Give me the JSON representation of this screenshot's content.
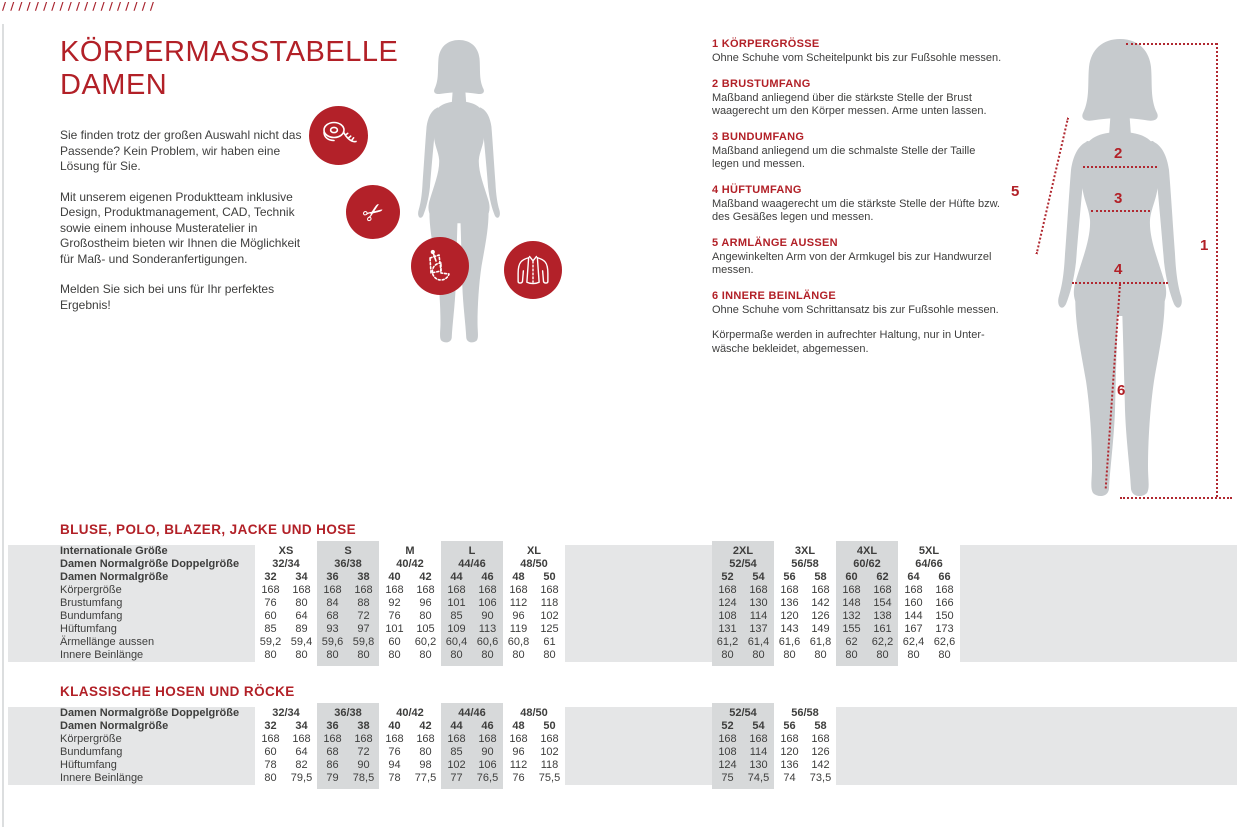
{
  "decor": {
    "slashes": "///////////////////"
  },
  "colors": {
    "accent_red": "#b22027",
    "badge_red": "#b32129",
    "silhouette_gray": "#c6cacd",
    "band_gray": "#e5e6e7",
    "shaded_column_gray": "#d7d9da",
    "body_text": "#3e3e3d"
  },
  "page": {
    "title_line1": "KÖRPERMASSTABELLE",
    "title_line2": "DAMEN",
    "intro": [
      "Sie finden trotz der großen Auswahl nicht das Passende? Kein Problem, wir haben eine Lösung für Sie.",
      "Mit unserem eigenen Produktteam inklusive Design, Produktmanagement, CAD, Technik sowie einem inhouse Musteratelier in Großostheim bieten wir Ihnen die Möglichkeit für Maß- und Sonderanfertigungen.",
      "Melden Sie sich bei uns für Ihr perfektes Ergebnis!"
    ]
  },
  "icons": [
    "tape-measure-icon",
    "scissors-icon",
    "sewing-pattern-icon",
    "jacket-icon"
  ],
  "scissors_glyph": "✂",
  "instructions": [
    {
      "heading": "1 KÖRPERGRÖSSE",
      "text": "Ohne Schuhe vom Scheitelpunkt bis zur Fußsohle messen."
    },
    {
      "heading": "2 BRUSTUMFANG",
      "text": "Maßband anliegend über die stärkste Stelle der Brust waagerecht um den Körper messen. Arme unten lassen."
    },
    {
      "heading": "3 BUNDUMFANG",
      "text": "Maßband anliegend um die schmalste Stelle der Taille legen und messen."
    },
    {
      "heading": "4 HÜFTUMFANG",
      "text": "Maßband waagerecht um die stärkste Stelle der Hüfte bzw. des Gesäßes legen und messen."
    },
    {
      "heading": "5 ARMLÄNGE AUSSEN",
      "text": "Angewinkelten Arm von der Armkugel bis zur Handwurzel messen."
    },
    {
      "heading": "6 INNERE BEINLÄNGE",
      "text": "Ohne Schuhe vom Schrittansatz bis zur Fußsohle messen."
    }
  ],
  "note": "Körpermaße werden in aufrechter Haltung, nur in Unter­wäsche bekleidet, abgemessen.",
  "measure_labels": [
    "1",
    "2",
    "3",
    "4",
    "5",
    "6"
  ],
  "tables": [
    {
      "title": "BLUSE, POLO, BLAZER, JACKE UND HOSE",
      "header_labels": [
        "Internationale Größe",
        "Damen Normalgröße Doppelgröße",
        "Damen Normalgröße"
      ],
      "metric_labels": [
        "Körpergröße",
        "Brustumfang",
        "Bundumfang",
        "Hüftumfang",
        "Ärmellänge aussen",
        "Innere Beinlänge"
      ],
      "groups": [
        {
          "int_size": "XS",
          "double_size": "32/34",
          "shaded": false,
          "columns": [
            {
              "size": "32",
              "values": [
                "168",
                "76",
                "60",
                "85",
                "59,2",
                "80"
              ]
            },
            {
              "size": "34",
              "values": [
                "168",
                "80",
                "64",
                "89",
                "59,4",
                "80"
              ]
            }
          ]
        },
        {
          "int_size": "S",
          "double_size": "36/38",
          "shaded": true,
          "columns": [
            {
              "size": "36",
              "values": [
                "168",
                "84",
                "68",
                "93",
                "59,6",
                "80"
              ]
            },
            {
              "size": "38",
              "values": [
                "168",
                "88",
                "72",
                "97",
                "59,8",
                "80"
              ]
            }
          ]
        },
        {
          "int_size": "M",
          "double_size": "40/42",
          "shaded": false,
          "columns": [
            {
              "size": "40",
              "values": [
                "168",
                "92",
                "76",
                "101",
                "60",
                "80"
              ]
            },
            {
              "size": "42",
              "values": [
                "168",
                "96",
                "80",
                "105",
                "60,2",
                "80"
              ]
            }
          ]
        },
        {
          "int_size": "L",
          "double_size": "44/46",
          "shaded": true,
          "columns": [
            {
              "size": "44",
              "values": [
                "168",
                "101",
                "85",
                "109",
                "60,4",
                "80"
              ]
            },
            {
              "size": "46",
              "values": [
                "168",
                "106",
                "90",
                "113",
                "60,6",
                "80"
              ]
            }
          ]
        },
        {
          "int_size": "XL",
          "double_size": "48/50",
          "shaded": false,
          "columns": [
            {
              "size": "48",
              "values": [
                "168",
                "112",
                "96",
                "119",
                "60,8",
                "80"
              ]
            },
            {
              "size": "50",
              "values": [
                "168",
                "118",
                "102",
                "125",
                "61",
                "80"
              ]
            }
          ]
        },
        {
          "int_size": "2XL",
          "double_size": "52/54",
          "shaded": true,
          "columns": [
            {
              "size": "52",
              "values": [
                "168",
                "124",
                "108",
                "131",
                "61,2",
                "80"
              ]
            },
            {
              "size": "54",
              "values": [
                "168",
                "130",
                "114",
                "137",
                "61,4",
                "80"
              ]
            }
          ]
        },
        {
          "int_size": "3XL",
          "double_size": "56/58",
          "shaded": false,
          "columns": [
            {
              "size": "56",
              "values": [
                "168",
                "136",
                "120",
                "143",
                "61,6",
                "80"
              ]
            },
            {
              "size": "58",
              "values": [
                "168",
                "142",
                "126",
                "149",
                "61,8",
                "80"
              ]
            }
          ]
        },
        {
          "int_size": "4XL",
          "double_size": "60/62",
          "shaded": true,
          "columns": [
            {
              "size": "60",
              "values": [
                "168",
                "148",
                "132",
                "155",
                "62",
                "80"
              ]
            },
            {
              "size": "62",
              "values": [
                "168",
                "154",
                "138",
                "161",
                "62,2",
                "80"
              ]
            }
          ]
        },
        {
          "int_size": "5XL",
          "double_size": "64/66",
          "shaded": false,
          "columns": [
            {
              "size": "64",
              "values": [
                "168",
                "160",
                "144",
                "167",
                "62,4",
                "80"
              ]
            },
            {
              "size": "66",
              "values": [
                "168",
                "166",
                "150",
                "173",
                "62,6",
                "80"
              ]
            }
          ]
        }
      ]
    },
    {
      "title": "KLASSISCHE HOSEN UND RÖCKE",
      "header_labels": [
        "Damen Normalgröße Doppelgröße",
        "Damen Normalgröße"
      ],
      "metric_labels": [
        "Körpergröße",
        "Bundumfang",
        "Hüftumfang",
        "Innere Beinlänge"
      ],
      "groups": [
        {
          "double_size": "32/34",
          "shaded": false,
          "columns": [
            {
              "size": "32",
              "values": [
                "168",
                "60",
                "78",
                "80"
              ]
            },
            {
              "size": "34",
              "values": [
                "168",
                "64",
                "82",
                "79,5"
              ]
            }
          ]
        },
        {
          "double_size": "36/38",
          "shaded": true,
          "columns": [
            {
              "size": "36",
              "values": [
                "168",
                "68",
                "86",
                "79"
              ]
            },
            {
              "size": "38",
              "values": [
                "168",
                "72",
                "90",
                "78,5"
              ]
            }
          ]
        },
        {
          "double_size": "40/42",
          "shaded": false,
          "columns": [
            {
              "size": "40",
              "values": [
                "168",
                "76",
                "94",
                "78"
              ]
            },
            {
              "size": "42",
              "values": [
                "168",
                "80",
                "98",
                "77,5"
              ]
            }
          ]
        },
        {
          "double_size": "44/46",
          "shaded": true,
          "columns": [
            {
              "size": "44",
              "values": [
                "168",
                "85",
                "102",
                "77"
              ]
            },
            {
              "size": "46",
              "values": [
                "168",
                "90",
                "106",
                "76,5"
              ]
            }
          ]
        },
        {
          "double_size": "48/50",
          "shaded": false,
          "columns": [
            {
              "size": "48",
              "values": [
                "168",
                "96",
                "112",
                "76"
              ]
            },
            {
              "size": "50",
              "values": [
                "168",
                "102",
                "118",
                "75,5"
              ]
            }
          ]
        },
        {
          "double_size": "52/54",
          "shaded": true,
          "columns": [
            {
              "size": "52",
              "values": [
                "168",
                "108",
                "124",
                "75"
              ]
            },
            {
              "size": "54",
              "values": [
                "168",
                "114",
                "130",
                "74,5"
              ]
            }
          ]
        },
        {
          "double_size": "56/58",
          "shaded": false,
          "columns": [
            {
              "size": "56",
              "values": [
                "168",
                "120",
                "136",
                "74"
              ]
            },
            {
              "size": "58",
              "values": [
                "168",
                "126",
                "142",
                "73,5"
              ]
            }
          ]
        }
      ]
    }
  ]
}
